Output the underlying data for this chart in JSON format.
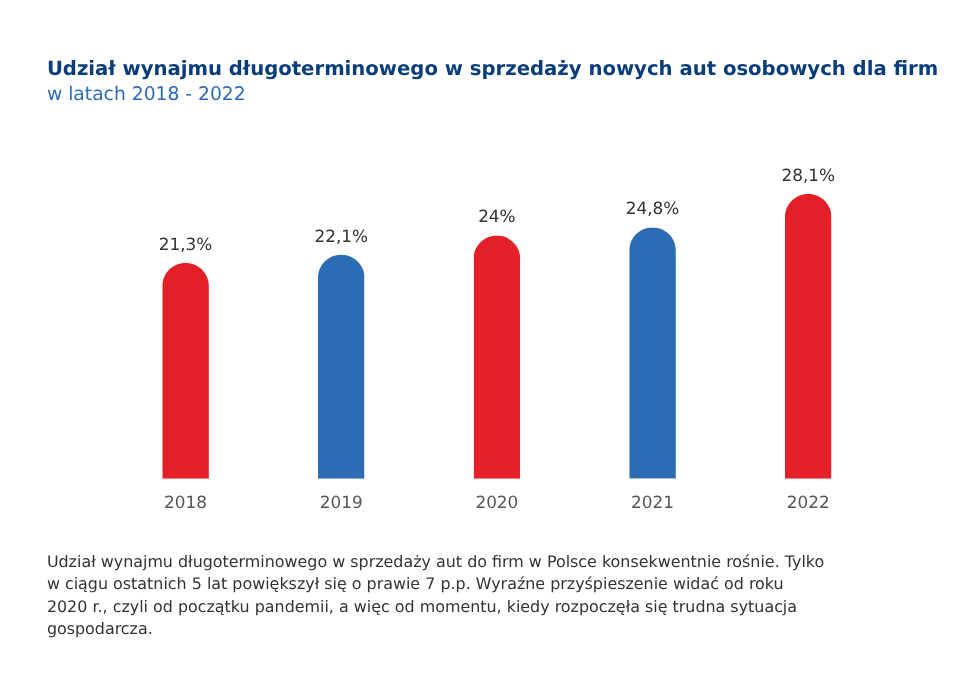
{
  "chart_data": {
    "type": "bar",
    "title": "Udział wynajmu długoterminowego w sprzedaży nowych aut osobowych dla firm",
    "subtitle": "w latach 2018 - 2022",
    "categories": [
      "2018",
      "2019",
      "2020",
      "2021",
      "2022"
    ],
    "values": [
      21.3,
      22.1,
      24,
      24.8,
      28.1
    ],
    "value_labels": [
      "21,3%",
      "22,1%",
      "24%",
      "24,8%",
      "28,1%"
    ],
    "colors": [
      "#e32028",
      "#2c6cb5",
      "#e32028",
      "#2c6cb5",
      "#e32028"
    ],
    "annotations": [
      "Udział wynajmu długoterminowego w sprzedaży aut do firm w Polsce konsekwentnie rośnie. Tylko w ciągu ostatnich 5 lat powiększył się o prawie 7 p.p. Wyraźne przyśpieszenie widać od roku 2020 r., czyli od początku pandemii, a więc od momentu, kiedy rozpoczęła się trudna sytuacja gospodarcza."
    ]
  }
}
